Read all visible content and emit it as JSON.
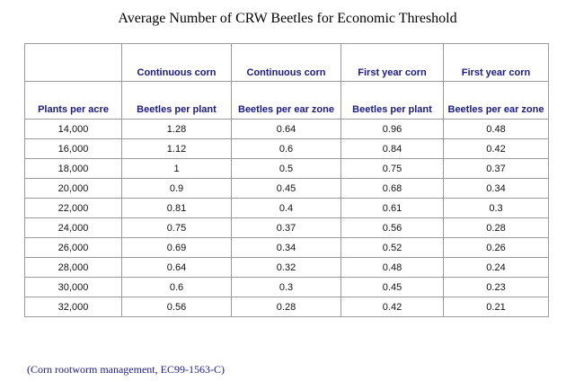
{
  "title": "Average Number of CRW Beetles for Economic Threshold",
  "header_row_1": [
    "",
    "Continuous corn",
    "Continuous corn",
    "First year corn",
    "First year corn"
  ],
  "header_row_2": [
    "Plants per acre",
    "Beetles per plant",
    "Beetles per ear zone",
    "Beetles per plant",
    "Beetles per ear zone"
  ],
  "rows": [
    [
      "14,000",
      "1.28",
      "0.64",
      "0.96",
      "0.48"
    ],
    [
      "16,000",
      "1.12",
      "0.6",
      "0.84",
      "0.42"
    ],
    [
      "18,000",
      "1",
      "0.5",
      "0.75",
      "0.37"
    ],
    [
      "20,000",
      "0.9",
      "0.45",
      "0.68",
      "0.34"
    ],
    [
      "22,000",
      "0.81",
      "0.4",
      "0.61",
      "0.3"
    ],
    [
      "24,000",
      "0.75",
      "0.37",
      "0.56",
      "0.28"
    ],
    [
      "26,000",
      "0.69",
      "0.34",
      "0.52",
      "0.26"
    ],
    [
      "28,000",
      "0.64",
      "0.32",
      "0.48",
      "0.24"
    ],
    [
      "30,000",
      "0.6",
      "0.3",
      "0.45",
      "0.23"
    ],
    [
      "32,000",
      "0.56",
      "0.28",
      "0.42",
      "0.21"
    ]
  ],
  "source": "(Corn rootworm management, EC99-1563-C)"
}
